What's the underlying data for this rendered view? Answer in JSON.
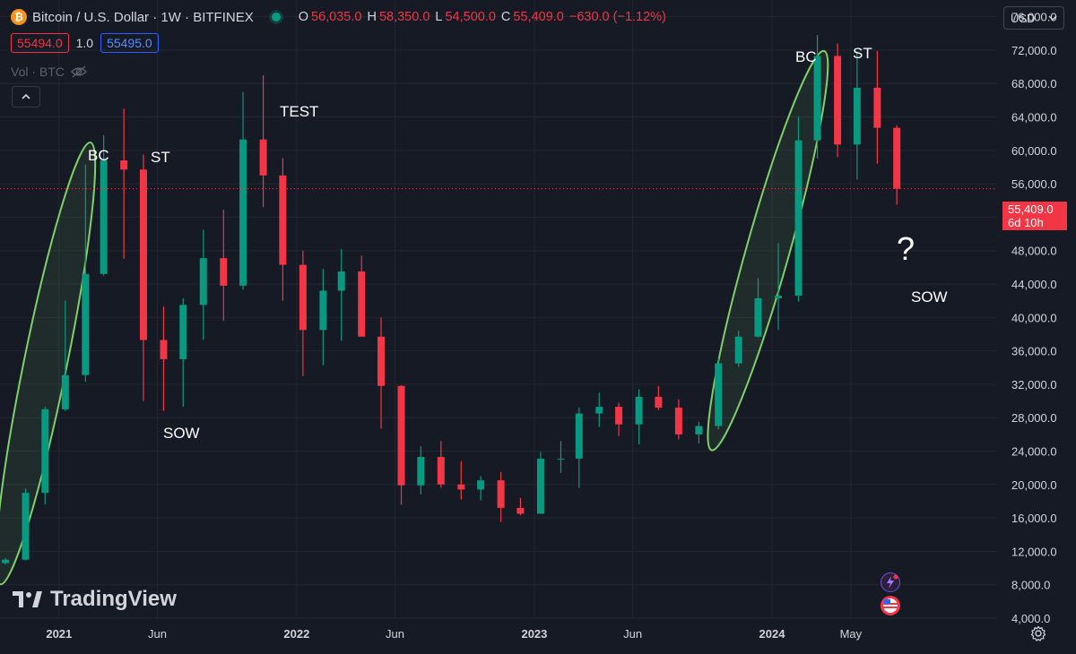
{
  "header": {
    "logo_glyph": "₿",
    "title": "Bitcoin / U.S. Dollar · 1W · BITFINEX",
    "ohlc": [
      {
        "key": "O",
        "value": "56,035.0"
      },
      {
        "key": "H",
        "value": "58,350.0"
      },
      {
        "key": "L",
        "value": "54,500.0"
      },
      {
        "key": "C",
        "value": "55,409.0"
      }
    ],
    "change": "−630.0 (−1.12%)",
    "sell_price": "55494.0",
    "spread": "1.0",
    "buy_price": "55495.0",
    "volume_label": "Vol · BTC",
    "currency": "USD"
  },
  "price_tag": {
    "price": "55,409.0",
    "countdown": "6d 10h"
  },
  "brand": "TradingView",
  "colors": {
    "up": "#089981",
    "down": "#f23645",
    "background": "#161a25",
    "grid": "#232632",
    "ellipse": "#7fd06a",
    "accent": "#2962ff"
  },
  "icons": [
    "bitcoin-icon",
    "eye-off-icon",
    "chevron-up-icon",
    "chevron-down-icon",
    "lightning-icon",
    "us-flag-icon",
    "settings-icon"
  ],
  "chart_data": {
    "type": "candlestick",
    "title": "Bitcoin / U.S. Dollar · 1W · BITFINEX",
    "ylim": [
      4000,
      78000
    ],
    "y_scale": "linear",
    "y_ticks": [
      "4,000.0",
      "8,000.0",
      "12,000.0",
      "16,000.0",
      "20,000.0",
      "24,000.0",
      "28,000.0",
      "32,000.0",
      "36,000.0",
      "40,000.0",
      "44,000.0",
      "48,000.0",
      "52,000.0",
      "56,000.0",
      "60,000.0",
      "64,000.0",
      "68,000.0",
      "72,000.0",
      "76,000.0"
    ],
    "x_ticks": [
      "2021",
      "Jun",
      "2022",
      "Jun",
      "2023",
      "Jun",
      "2024",
      "May"
    ],
    "grid": true,
    "current_price_line": 55409,
    "annotations": [
      {
        "text": "BC",
        "x": "2021-02",
        "y": 60000
      },
      {
        "text": "ST",
        "x": "2021-04",
        "y": 60000
      },
      {
        "text": "SOW",
        "x": "2021-06",
        "y": 29000
      },
      {
        "text": "TEST",
        "x": "2021-11",
        "y": 67000
      },
      {
        "text": "BC",
        "x": "2024-03",
        "y": 73000
      },
      {
        "text": "ST",
        "x": "2024-04",
        "y": 73000
      },
      {
        "text": "?",
        "x": "2024-07",
        "y": 50000
      },
      {
        "text": "SOW",
        "x": "2024-08",
        "y": 44000
      }
    ],
    "ellipses": [
      {
        "label": "rally-2020-2021",
        "from": [
          "2020-10",
          11000
        ],
        "to": [
          "2021-02",
          58000
        ]
      },
      {
        "label": "rally-2023-2024",
        "from": [
          "2023-10",
          27000
        ],
        "to": [
          "2024-03",
          69000
        ]
      }
    ],
    "series": [
      {
        "values": [
          {
            "t": "2020-10",
            "o": 10600,
            "h": 11200,
            "l": 10400,
            "c": 11000
          },
          {
            "t": "2020-11",
            "o": 11000,
            "h": 19500,
            "l": 10900,
            "c": 19000
          },
          {
            "t": "2020-12",
            "o": 19000,
            "h": 29300,
            "l": 17600,
            "c": 29000
          },
          {
            "t": "2021-01",
            "o": 29000,
            "h": 42000,
            "l": 28800,
            "c": 33100
          },
          {
            "t": "2021-02",
            "o": 33100,
            "h": 58300,
            "l": 32300,
            "c": 45200
          },
          {
            "t": "2021-03",
            "o": 45200,
            "h": 61800,
            "l": 45000,
            "c": 58800
          },
          {
            "t": "2021-04",
            "o": 58800,
            "h": 65000,
            "l": 47000,
            "c": 57700
          },
          {
            "t": "2021-05",
            "o": 57700,
            "h": 59500,
            "l": 30000,
            "c": 37300
          },
          {
            "t": "2021-06",
            "o": 37300,
            "h": 41300,
            "l": 28800,
            "c": 35000
          },
          {
            "t": "2021-07",
            "o": 35000,
            "h": 42300,
            "l": 29300,
            "c": 41500
          },
          {
            "t": "2021-08",
            "o": 41500,
            "h": 50500,
            "l": 37300,
            "c": 47100
          },
          {
            "t": "2021-09",
            "o": 47100,
            "h": 52900,
            "l": 39600,
            "c": 43800
          },
          {
            "t": "2021-10",
            "o": 43800,
            "h": 67000,
            "l": 43300,
            "c": 61300
          },
          {
            "t": "2021-11",
            "o": 61300,
            "h": 69000,
            "l": 53200,
            "c": 57000
          },
          {
            "t": "2021-12",
            "o": 57000,
            "h": 59100,
            "l": 42000,
            "c": 46300
          },
          {
            "t": "2022-01",
            "o": 46300,
            "h": 48000,
            "l": 33000,
            "c": 38500
          },
          {
            "t": "2022-02",
            "o": 38500,
            "h": 45800,
            "l": 34300,
            "c": 43200
          },
          {
            "t": "2022-03",
            "o": 43200,
            "h": 48200,
            "l": 37200,
            "c": 45500
          },
          {
            "t": "2022-04",
            "o": 45500,
            "h": 47400,
            "l": 37700,
            "c": 37700
          },
          {
            "t": "2022-05",
            "o": 37700,
            "h": 40000,
            "l": 26700,
            "c": 31800
          },
          {
            "t": "2022-06",
            "o": 31800,
            "h": 31900,
            "l": 17600,
            "c": 19900
          },
          {
            "t": "2022-07",
            "o": 19900,
            "h": 24600,
            "l": 18800,
            "c": 23300
          },
          {
            "t": "2022-08",
            "o": 23300,
            "h": 25200,
            "l": 19600,
            "c": 20000
          },
          {
            "t": "2022-09",
            "o": 20000,
            "h": 22800,
            "l": 18200,
            "c": 19400
          },
          {
            "t": "2022-10",
            "o": 19400,
            "h": 21000,
            "l": 18100,
            "c": 20500
          },
          {
            "t": "2022-11",
            "o": 20500,
            "h": 21500,
            "l": 15500,
            "c": 17200
          },
          {
            "t": "2022-12",
            "o": 17200,
            "h": 18400,
            "l": 16300,
            "c": 16500
          },
          {
            "t": "2023-01",
            "o": 16500,
            "h": 23900,
            "l": 16500,
            "c": 23100
          },
          {
            "t": "2023-02",
            "o": 23100,
            "h": 25200,
            "l": 21400,
            "c": 23100
          },
          {
            "t": "2023-03",
            "o": 23100,
            "h": 29200,
            "l": 19600,
            "c": 28500
          },
          {
            "t": "2023-04",
            "o": 28500,
            "h": 31000,
            "l": 26900,
            "c": 29300
          },
          {
            "t": "2023-05",
            "o": 29300,
            "h": 29800,
            "l": 25800,
            "c": 27200
          },
          {
            "t": "2023-06",
            "o": 27200,
            "h": 31400,
            "l": 24800,
            "c": 30500
          },
          {
            "t": "2023-07",
            "o": 30500,
            "h": 31800,
            "l": 28900,
            "c": 29200
          },
          {
            "t": "2023-08",
            "o": 29200,
            "h": 30200,
            "l": 25400,
            "c": 26000
          },
          {
            "t": "2023-09",
            "o": 26000,
            "h": 27500,
            "l": 24900,
            "c": 27000
          },
          {
            "t": "2023-10",
            "o": 27000,
            "h": 35200,
            "l": 26600,
            "c": 34500
          },
          {
            "t": "2023-11",
            "o": 34500,
            "h": 38400,
            "l": 34100,
            "c": 37700
          },
          {
            "t": "2023-12",
            "o": 37700,
            "h": 44700,
            "l": 37600,
            "c": 42300
          },
          {
            "t": "2024-01",
            "o": 42300,
            "h": 48900,
            "l": 38500,
            "c": 42600
          },
          {
            "t": "2024-02",
            "o": 42600,
            "h": 64000,
            "l": 41900,
            "c": 61200
          },
          {
            "t": "2024-03",
            "o": 61200,
            "h": 73800,
            "l": 59000,
            "c": 71300
          },
          {
            "t": "2024-04",
            "o": 71300,
            "h": 72800,
            "l": 59200,
            "c": 60700
          },
          {
            "t": "2024-05",
            "o": 60700,
            "h": 71900,
            "l": 56500,
            "c": 67500
          },
          {
            "t": "2024-06",
            "o": 67500,
            "h": 71900,
            "l": 58400,
            "c": 62700
          },
          {
            "t": "2024-07",
            "o": 62700,
            "h": 63000,
            "l": 53500,
            "c": 55409
          }
        ]
      }
    ]
  }
}
